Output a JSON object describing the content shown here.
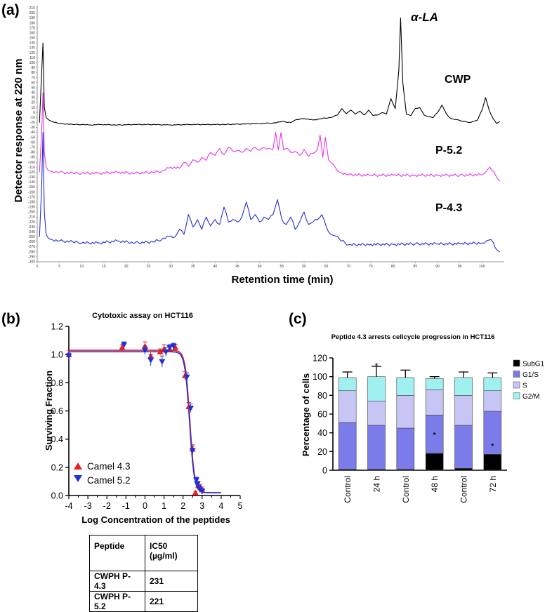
{
  "panels": {
    "a": {
      "letter": "(a)",
      "ylabel": "Detector response at 220 nm",
      "xlabel": "Retention time (min)",
      "peak_label": "α-LA",
      "trace_labels": [
        "CWP",
        "P-5.2",
        "P-4.3"
      ],
      "colors": [
        "#000000",
        "#e535e5",
        "#1f2ed1"
      ]
    },
    "b": {
      "letter": "(b)",
      "table": {
        "headers": [
          "Peptide",
          "IC50 (µg/ml)"
        ],
        "rows": [
          [
            "CWPH P-4.3",
            "231"
          ],
          [
            "CWPH P-5.2",
            "221"
          ]
        ]
      }
    },
    "c": {
      "letter": "(c)"
    }
  },
  "chart_data": [
    {
      "type": "line",
      "xlim": [
        0,
        105
      ],
      "ylim": [
        -300,
        215
      ],
      "x_ticks": [
        0,
        5,
        10,
        15,
        20,
        25,
        30,
        35,
        40,
        45,
        50,
        55,
        60,
        65,
        70,
        75,
        80,
        85,
        90,
        95,
        100
      ],
      "y_ticks": [
        210,
        200,
        190,
        180,
        170,
        160,
        150,
        140,
        130,
        120,
        110,
        100,
        90,
        80,
        70,
        60,
        50,
        40,
        30,
        20,
        10,
        0,
        -10,
        -20,
        -30,
        -40,
        -50,
        -60,
        -70,
        -80,
        -90,
        -100,
        -110,
        -120,
        -130,
        -140,
        -150,
        -160,
        -170,
        -180,
        -190,
        -200,
        -210,
        -220,
        -230,
        -240,
        -250,
        -260,
        -270,
        -280,
        -290,
        -300
      ],
      "title": "",
      "xlabel": "Retention time (min)",
      "ylabel": "Detector response at 220 nm",
      "grid": false,
      "series": [
        {
          "name": "CWP",
          "color": "#000000",
          "baseline": -25,
          "x": [
            0.5,
            1.0,
            1.3,
            1.6,
            2,
            3,
            5,
            8,
            10,
            12,
            14,
            18,
            22,
            26,
            30,
            34,
            38,
            42,
            46,
            50,
            53,
            55,
            57,
            58,
            60,
            62,
            64,
            66,
            67.5,
            68.5,
            69.5,
            70.5,
            71.5,
            72.5,
            73.5,
            74.5,
            75.5,
            76.5,
            77.5,
            78.5,
            79.5,
            80.5,
            81.3,
            81.7,
            82.2,
            83,
            84,
            85,
            86,
            87,
            88,
            89,
            90,
            91,
            92,
            93,
            94,
            95,
            96,
            97,
            98,
            99,
            100,
            100.8,
            101.6,
            102.5,
            103.3,
            104
          ],
          "y": [
            -20,
            80,
            140,
            10,
            -10,
            -17,
            -22,
            -24,
            -24,
            -25,
            -24,
            -25,
            -24,
            -24,
            -25,
            -24,
            -24,
            -24,
            -23,
            -22,
            -21,
            -18,
            -20,
            -15,
            -12,
            -15,
            -12,
            -10,
            -5,
            8,
            -2,
            5,
            -3,
            3,
            -5,
            5,
            -6,
            -5,
            0,
            -3,
            28,
            8,
            85,
            190,
            60,
            -3,
            -6,
            8,
            10,
            -5,
            -8,
            -10,
            0,
            15,
            -3,
            -12,
            -14,
            -16,
            -18,
            -20,
            -18,
            -15,
            5,
            30,
            5,
            -12,
            -22,
            -18
          ]
        },
        {
          "name": "P-5.2",
          "color": "#e535e5",
          "baseline": -128,
          "x": [
            0.5,
            1.0,
            1.3,
            1.6,
            2,
            3,
            5,
            8,
            10,
            14,
            18,
            22,
            26,
            28,
            30,
            32,
            33,
            34,
            35,
            36,
            37,
            38,
            39,
            40,
            41,
            42,
            43,
            44,
            45,
            46,
            47,
            48,
            49,
            50,
            51,
            52,
            53,
            53.6,
            54.2,
            54.8,
            55.4,
            56,
            57,
            58,
            59,
            60,
            61,
            62,
            63,
            63.6,
            64.2,
            64.8,
            65.5,
            66,
            67,
            68,
            70,
            75,
            80,
            85,
            90,
            95,
            100,
            101,
            101.8,
            102.6,
            103.4,
            104
          ],
          "y": [
            -120,
            -40,
            40,
            -80,
            -110,
            -118,
            -120,
            -122,
            -122,
            -122,
            -120,
            -122,
            -120,
            -118,
            -110,
            -112,
            -100,
            -108,
            -95,
            -100,
            -90,
            -96,
            -80,
            -86,
            -72,
            -85,
            -70,
            -78,
            -76,
            -80,
            -72,
            -78,
            -70,
            -76,
            -70,
            -72,
            -74,
            -40,
            -75,
            -40,
            -75,
            -72,
            -80,
            -78,
            -86,
            -74,
            -88,
            -82,
            -75,
            -45,
            -90,
            -50,
            -95,
            -100,
            -110,
            -120,
            -125,
            -126,
            -126,
            -126,
            -126,
            -126,
            -125,
            -118,
            -110,
            -118,
            -132,
            -138
          ]
        },
        {
          "name": "P-4.3",
          "color": "#1f2ed1",
          "baseline": -260,
          "x": [
            0.5,
            1.0,
            1.3,
            1.6,
            2,
            3,
            5,
            8,
            10,
            14,
            18,
            22,
            26,
            28,
            30,
            31,
            32,
            33,
            34,
            35,
            36,
            37,
            38,
            39,
            40,
            41,
            42,
            43,
            44,
            45,
            46,
            47,
            48,
            49,
            50,
            51,
            52,
            53,
            54,
            55,
            56,
            57,
            58,
            59,
            60,
            61,
            62,
            63,
            64,
            65,
            66,
            67,
            68,
            70,
            75,
            80,
            85,
            90,
            95,
            100,
            101,
            102,
            103,
            104
          ],
          "y": [
            -250,
            -150,
            -40,
            -200,
            -245,
            -255,
            -258,
            -260,
            -262,
            -262,
            -258,
            -262,
            -260,
            -255,
            -248,
            -250,
            -235,
            -245,
            -205,
            -230,
            -215,
            -235,
            -210,
            -228,
            -215,
            -225,
            -190,
            -220,
            -215,
            -220,
            -210,
            -180,
            -215,
            -205,
            -220,
            -210,
            -215,
            -205,
            -175,
            -215,
            -225,
            -210,
            -235,
            -220,
            -200,
            -225,
            -220,
            -215,
            -205,
            -230,
            -245,
            -248,
            -255,
            -266,
            -265,
            -265,
            -264,
            -264,
            -264,
            -262,
            -258,
            -255,
            -272,
            -280
          ]
        }
      ],
      "annotations": [
        "α-LA",
        "CWP",
        "P-5.2",
        "P-4.3"
      ]
    },
    {
      "type": "scatter",
      "title": "Cytotoxic assay on HCT116",
      "xlabel": "Log Concentration of the peptides",
      "ylabel": "Surviving Fraction",
      "xlim": [
        -4,
        5
      ],
      "ylim": [
        0,
        1.2
      ],
      "x_ticks": [
        -4,
        -3.5,
        -3,
        -2.5,
        -2,
        -1.5,
        -1,
        -0.5,
        0,
        0.5,
        1,
        1.5,
        2,
        2.5,
        3,
        3.5,
        4,
        4.5,
        5
      ],
      "x_tick_labels": [
        "-4",
        "-3",
        "-2",
        "-1",
        "0",
        "1",
        "2",
        "3",
        "4",
        "5"
      ],
      "y_ticks": [
        0.0,
        0.2,
        0.4,
        0.6,
        0.8,
        1.0,
        1.2
      ],
      "y_tick_labels": [
        "0.0",
        "0.2",
        "0.4",
        "0.6",
        "0.8",
        "1.0",
        "1.2"
      ],
      "legend_position": "bottom-left",
      "grid": false,
      "series": [
        {
          "name": "Camel 4.3",
          "color": "#e8201f",
          "marker": "triangle-up",
          "x": [
            -4,
            -1.2,
            0,
            0.3,
            0.8,
            1.0,
            1.3,
            1.6,
            2.1,
            2.3,
            2.5,
            2.65,
            2.8,
            2.9,
            3.0
          ],
          "y": [
            1.0,
            1.05,
            1.06,
            0.99,
            1.02,
            1.04,
            1.04,
            1.05,
            0.85,
            0.63,
            0.33,
            0.02,
            0.07,
            0.06,
            0.04
          ],
          "err": [
            0.03,
            0.02,
            0.03,
            0.03,
            0.02,
            0.03,
            0.02,
            0.02,
            0.03,
            0.03,
            0.03,
            0.01,
            0.03,
            0.02,
            0.02
          ]
        },
        {
          "name": "Camel 5.2",
          "color": "#2231d4",
          "marker": "triangle-down",
          "x": [
            -4,
            -1.1,
            0,
            0.3,
            0.9,
            1.1,
            1.3,
            1.5,
            2.2,
            2.4,
            2.5,
            2.7,
            2.75,
            2.85,
            3.0
          ],
          "y": [
            0.99,
            1.07,
            1.03,
            0.96,
            0.95,
            1.02,
            1.05,
            1.06,
            0.84,
            0.62,
            0.32,
            0.11,
            0.08,
            0.05,
            0.03
          ],
          "err": [
            0.02,
            0.02,
            0.03,
            0.04,
            0.04,
            0.03,
            0.02,
            0.02,
            0.03,
            0.03,
            0.03,
            0.02,
            0.02,
            0.02,
            0.02
          ]
        }
      ],
      "fits": [
        {
          "name": "Camel 4.3",
          "top": 1.03,
          "bottom": 0.02,
          "logIC50": 2.36,
          "hill": -3.5,
          "color": "#e8201f"
        },
        {
          "name": "Camel 5.2",
          "top": 1.02,
          "bottom": 0.02,
          "logIC50": 2.34,
          "hill": -3.5,
          "color": "#2231d4"
        }
      ]
    },
    {
      "type": "bar",
      "stacked": true,
      "title": "Peptide 4.3 arrests cellcycle progression in HCT116",
      "xlabel": "",
      "ylabel": "Percentage of cells",
      "ylim": [
        0,
        120
      ],
      "y_ticks": [
        0,
        20,
        40,
        60,
        80,
        100,
        120
      ],
      "categories": [
        "Control",
        "24 h",
        "Control",
        "48 h",
        "Control",
        "72 h"
      ],
      "legend_position": "right",
      "series": [
        {
          "name": "SubG1",
          "color": "#000000",
          "values": [
            1,
            1,
            1,
            18,
            2,
            17
          ],
          "err": [
            0.5,
            0.5,
            1,
            14,
            1.5,
            5
          ]
        },
        {
          "name": "G1/S",
          "color": "#7b7bea",
          "values": [
            50,
            47,
            44,
            41,
            46,
            46
          ],
          "err": [
            3,
            6,
            5,
            7,
            3,
            7
          ]
        },
        {
          "name": "S",
          "color": "#c7c5f3",
          "values": [
            34,
            26,
            35,
            27,
            32,
            22
          ],
          "err": [
            3,
            5,
            4,
            3,
            4,
            4
          ]
        },
        {
          "name": "G2/M",
          "color": "#9ff0ef",
          "values": [
            14,
            26,
            19,
            12,
            19,
            14
          ],
          "err": [
            6,
            11,
            8,
            2,
            6,
            5
          ]
        }
      ],
      "significance": [
        "",
        "*",
        "",
        "*",
        "",
        "*"
      ]
    }
  ]
}
